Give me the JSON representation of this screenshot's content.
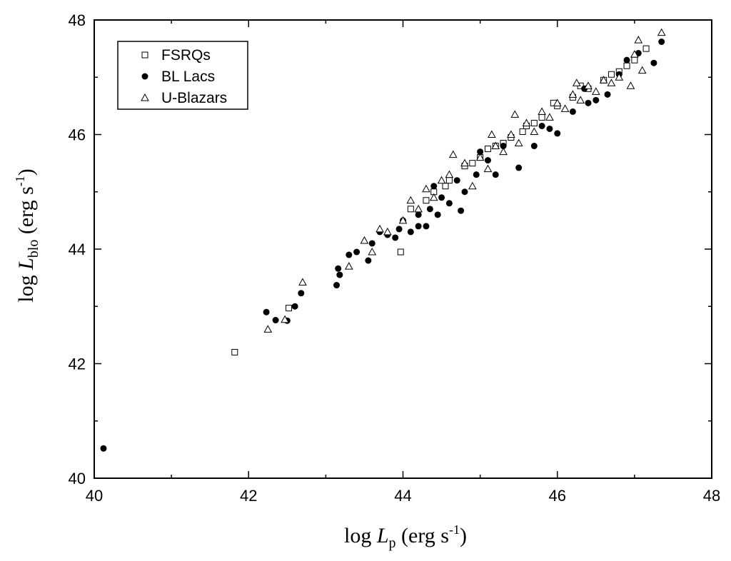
{
  "chart_data": {
    "type": "scatter",
    "title": "",
    "xlabel": {
      "prefix": "log ",
      "var": "L",
      "sub": "p",
      "suffix": " (erg s",
      "sup": "-1",
      "close": ")"
    },
    "ylabel": {
      "prefix": "log ",
      "var": "L",
      "sub": "blo",
      "suffix": " (erg s",
      "sup": "-1",
      "close": ")"
    },
    "xlim": [
      40,
      48
    ],
    "ylim": [
      40,
      48
    ],
    "xticks": [
      40,
      42,
      44,
      46,
      48
    ],
    "yticks": [
      40,
      42,
      44,
      46,
      48
    ],
    "xtick_labels": [
      "40",
      "42",
      "44",
      "46",
      "48"
    ],
    "ytick_labels": [
      "40",
      "42",
      "44",
      "46",
      "48"
    ],
    "grid": false,
    "legend_position": "top-left",
    "series": [
      {
        "name": "FSRQs",
        "marker": "open-square",
        "points": [
          [
            41.82,
            42.2
          ],
          [
            42.52,
            42.97
          ],
          [
            43.97,
            43.95
          ],
          [
            44.1,
            44.7
          ],
          [
            44.4,
            45.0
          ],
          [
            44.6,
            45.2
          ],
          [
            44.8,
            45.45
          ],
          [
            45.0,
            45.6
          ],
          [
            45.2,
            45.8
          ],
          [
            45.4,
            45.95
          ],
          [
            45.6,
            46.15
          ],
          [
            45.8,
            46.3
          ],
          [
            46.0,
            46.5
          ],
          [
            46.2,
            46.65
          ],
          [
            46.4,
            46.8
          ],
          [
            46.6,
            46.95
          ],
          [
            46.8,
            47.1
          ],
          [
            47.0,
            47.3
          ],
          [
            47.15,
            47.5
          ],
          [
            46.9,
            47.2
          ],
          [
            45.7,
            46.2
          ],
          [
            45.3,
            45.85
          ],
          [
            44.9,
            45.5
          ],
          [
            44.55,
            45.1
          ],
          [
            44.3,
            44.85
          ],
          [
            45.95,
            46.55
          ],
          [
            46.3,
            46.85
          ],
          [
            45.1,
            45.75
          ],
          [
            45.55,
            46.05
          ],
          [
            46.7,
            47.05
          ]
        ]
      },
      {
        "name": "BL Lacs",
        "marker": "filled-circle",
        "points": [
          [
            40.12,
            40.52
          ],
          [
            42.23,
            42.9
          ],
          [
            42.35,
            42.76
          ],
          [
            42.5,
            42.75
          ],
          [
            42.6,
            43.0
          ],
          [
            42.68,
            43.23
          ],
          [
            43.14,
            43.37
          ],
          [
            43.16,
            43.66
          ],
          [
            43.18,
            43.55
          ],
          [
            43.3,
            43.9
          ],
          [
            43.4,
            43.95
          ],
          [
            43.55,
            43.8
          ],
          [
            43.6,
            44.1
          ],
          [
            43.7,
            44.3
          ],
          [
            43.8,
            44.25
          ],
          [
            43.9,
            44.2
          ],
          [
            44.0,
            44.5
          ],
          [
            44.1,
            44.3
          ],
          [
            44.2,
            44.6
          ],
          [
            44.3,
            44.4
          ],
          [
            44.35,
            44.7
          ],
          [
            44.4,
            45.1
          ],
          [
            44.5,
            44.9
          ],
          [
            44.6,
            44.8
          ],
          [
            44.75,
            44.67
          ],
          [
            44.8,
            45.0
          ],
          [
            44.95,
            45.3
          ],
          [
            45.0,
            45.7
          ],
          [
            45.2,
            45.3
          ],
          [
            45.5,
            45.42
          ],
          [
            45.7,
            45.8
          ],
          [
            45.9,
            46.1
          ],
          [
            46.0,
            46.02
          ],
          [
            46.2,
            46.4
          ],
          [
            46.35,
            46.8
          ],
          [
            46.5,
            46.6
          ],
          [
            46.65,
            46.7
          ],
          [
            46.8,
            47.05
          ],
          [
            46.9,
            47.3
          ],
          [
            47.05,
            47.42
          ],
          [
            47.25,
            47.25
          ],
          [
            47.35,
            47.62
          ],
          [
            44.2,
            44.4
          ],
          [
            44.7,
            45.2
          ],
          [
            45.3,
            45.8
          ],
          [
            45.8,
            46.15
          ],
          [
            46.4,
            46.55
          ],
          [
            43.95,
            44.35
          ],
          [
            44.45,
            44.6
          ],
          [
            45.1,
            45.55
          ]
        ]
      },
      {
        "name": "U-Blazars",
        "marker": "open-triangle",
        "points": [
          [
            42.25,
            42.6
          ],
          [
            42.47,
            42.77
          ],
          [
            42.7,
            43.42
          ],
          [
            43.3,
            43.7
          ],
          [
            43.5,
            44.15
          ],
          [
            43.6,
            43.95
          ],
          [
            43.8,
            44.3
          ],
          [
            44.0,
            44.5
          ],
          [
            44.2,
            44.7
          ],
          [
            44.4,
            44.9
          ],
          [
            44.5,
            45.2
          ],
          [
            44.6,
            45.3
          ],
          [
            44.8,
            45.5
          ],
          [
            44.9,
            45.1
          ],
          [
            45.0,
            45.6
          ],
          [
            45.1,
            45.4
          ],
          [
            45.2,
            45.8
          ],
          [
            45.3,
            45.7
          ],
          [
            45.4,
            46.0
          ],
          [
            45.5,
            45.85
          ],
          [
            45.6,
            46.2
          ],
          [
            45.7,
            46.05
          ],
          [
            45.8,
            46.4
          ],
          [
            45.9,
            46.3
          ],
          [
            46.0,
            46.55
          ],
          [
            46.1,
            46.45
          ],
          [
            46.2,
            46.7
          ],
          [
            46.3,
            46.6
          ],
          [
            46.4,
            46.85
          ],
          [
            46.5,
            46.75
          ],
          [
            46.6,
            46.95
          ],
          [
            46.7,
            46.9
          ],
          [
            46.8,
            47.0
          ],
          [
            46.95,
            46.85
          ],
          [
            47.05,
            47.65
          ],
          [
            47.1,
            47.12
          ],
          [
            47.35,
            47.78
          ],
          [
            47.0,
            47.4
          ],
          [
            44.65,
            45.65
          ],
          [
            45.15,
            46.0
          ],
          [
            45.45,
            46.35
          ],
          [
            44.1,
            44.85
          ],
          [
            43.7,
            44.35
          ],
          [
            44.3,
            45.05
          ],
          [
            46.25,
            46.9
          ]
        ]
      }
    ]
  }
}
